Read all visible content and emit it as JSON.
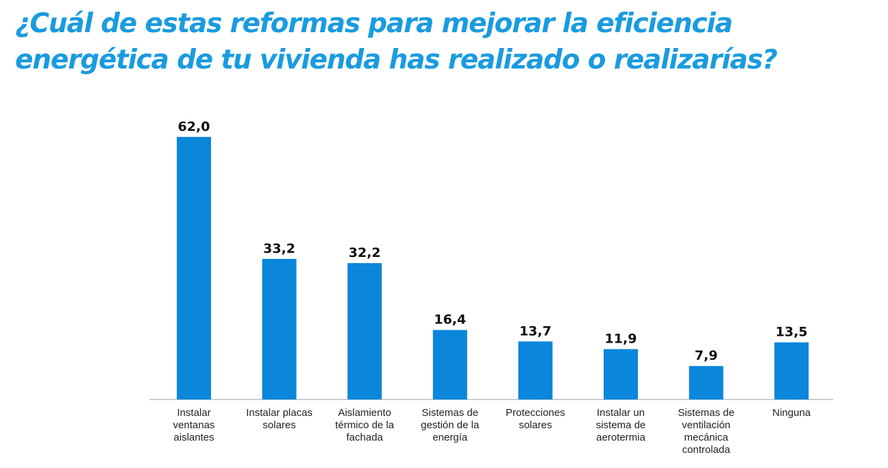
{
  "title": "¿Cuál de estas reformas para mejorar la eficiencia energética de tu vivienda has realizado o realizarías?",
  "colors": {
    "title": "#1a9be0",
    "bar": "#0a86db",
    "axis": "#bdbdbd"
  },
  "chart_data": {
    "type": "bar",
    "title": "¿Cuál de estas reformas para mejorar la eficiencia energética de tu vivienda has realizado o realizarías?",
    "xlabel": "",
    "ylabel": "",
    "grid": false,
    "legend": "none",
    "ylim": [
      0,
      65
    ],
    "categories": [
      [
        "Instalar",
        "ventanas",
        "aislantes"
      ],
      [
        "Instalar placas",
        "solares"
      ],
      [
        "Aislamiento",
        "térmico de la",
        "fachada"
      ],
      [
        "Sistemas de",
        "gestión de la",
        "energía"
      ],
      [
        "Protecciones",
        "solares"
      ],
      [
        "Instalar un",
        "sistema de",
        "aerotermia"
      ],
      [
        "Sistemas de",
        "ventilación",
        "mecánica",
        "controlada"
      ],
      [
        "Ninguna"
      ]
    ],
    "values": [
      62.0,
      33.2,
      32.2,
      16.4,
      13.7,
      11.9,
      7.9,
      13.5
    ],
    "value_labels": [
      "62,0",
      "33,2",
      "32,2",
      "16,4",
      "13,7",
      "11,9",
      "7,9",
      "13,5"
    ]
  }
}
